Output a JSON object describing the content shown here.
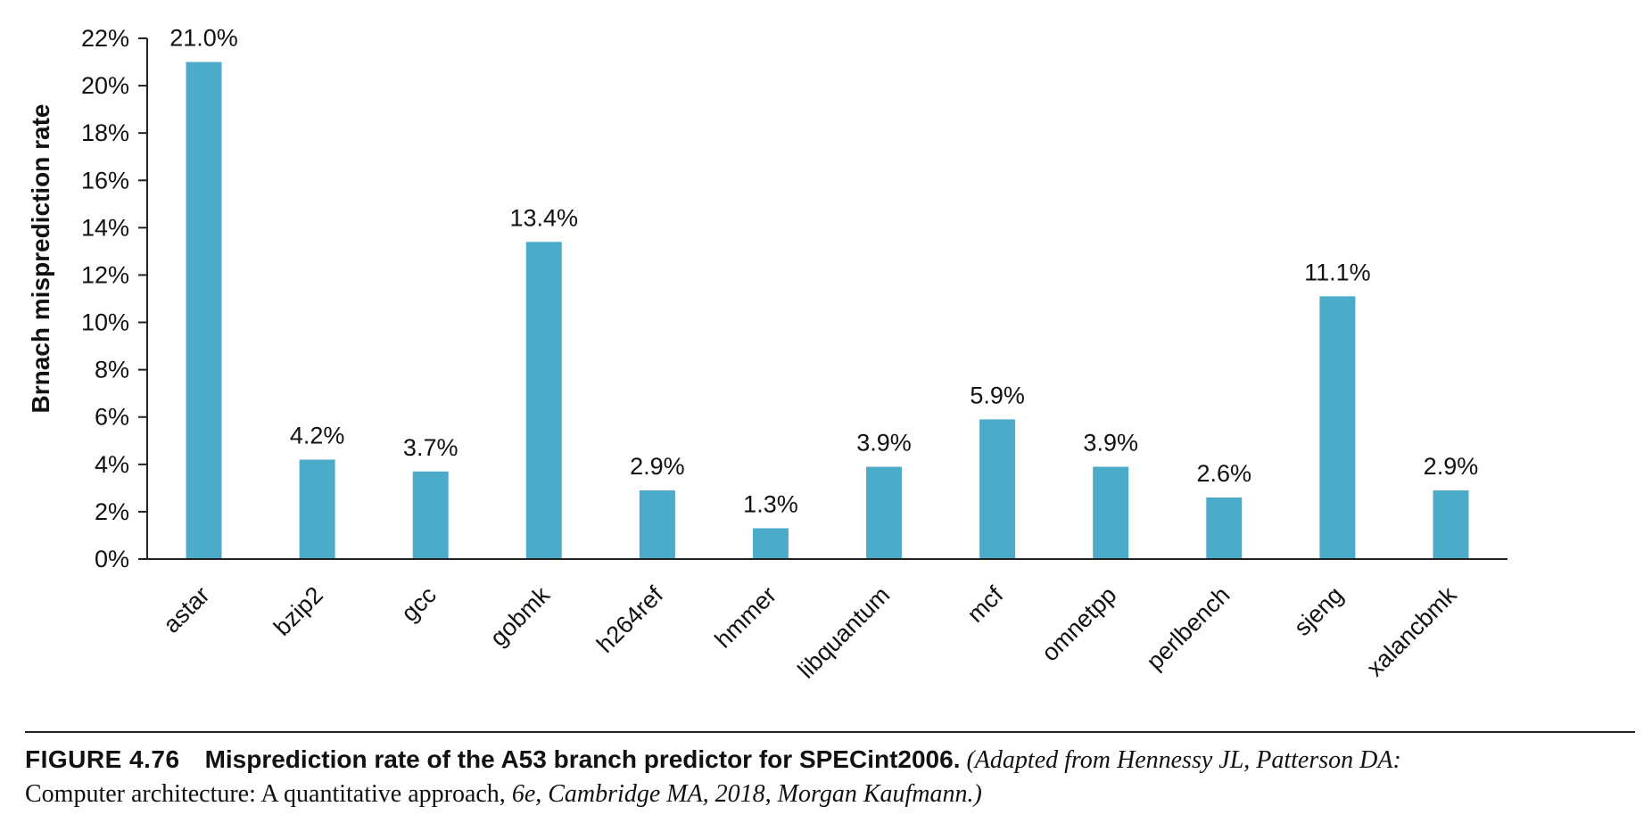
{
  "chart_data": {
    "type": "bar",
    "title": "",
    "xlabel": "",
    "ylabel": "Brnach misprediction rate",
    "categories": [
      "astar",
      "bzip2",
      "gcc",
      "gobmk",
      "h264ref",
      "hmmer",
      "libquantum",
      "mcf",
      "omnetpp",
      "perlbench",
      "sjeng",
      "xalancbmk"
    ],
    "values": [
      21.0,
      4.2,
      3.7,
      13.4,
      2.9,
      1.3,
      3.9,
      5.9,
      3.9,
      2.6,
      11.1,
      2.9
    ],
    "value_labels": [
      "21.0%",
      "4.2%",
      "3.7%",
      "13.4%",
      "2.9%",
      "1.3%",
      "3.9%",
      "5.9%",
      "3.9%",
      "2.6%",
      "11.1%",
      "2.9%"
    ],
    "ylim": [
      0,
      22
    ],
    "y_ticks": [
      0,
      2,
      4,
      6,
      8,
      10,
      12,
      14,
      16,
      18,
      20,
      22
    ],
    "y_tick_labels": [
      "0%",
      "2%",
      "4%",
      "6%",
      "8%",
      "10%",
      "12%",
      "14%",
      "16%",
      "18%",
      "20%",
      "22%"
    ],
    "grid": false,
    "bar_color": "#4babc8"
  },
  "caption": {
    "figure_label": "FIGURE 4.76",
    "title": "Misprediction rate of the A53 branch predictor for SPECint2006.",
    "source_prefix": "(Adapted from Hennessy JL, Patterson DA:",
    "source_book": "Computer architecture: A quantitative approach,",
    "source_suffix": "6e, Cambridge MA, 2018, Morgan Kaufmann.)"
  }
}
